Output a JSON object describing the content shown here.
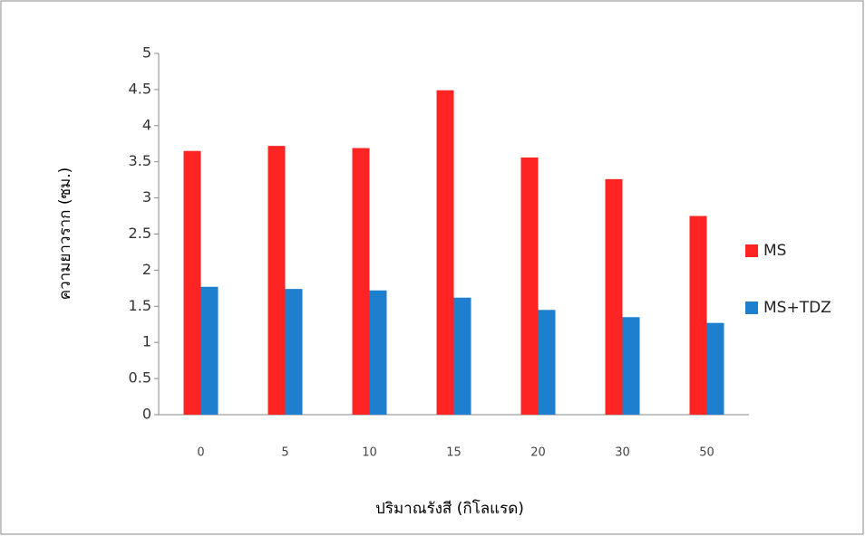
{
  "chart_data": {
    "type": "bar",
    "y_label": "ความยาวราก (ซม.)",
    "x_label": "ปริมาณรังสี (กิโลแรด)",
    "categories": [
      "0",
      "5",
      "10",
      "15",
      "20",
      "30",
      "50"
    ],
    "series": [
      {
        "name": "MS",
        "color": "#ff2424",
        "values": [
          3.65,
          3.72,
          3.69,
          4.49,
          3.56,
          3.26,
          2.75
        ]
      },
      {
        "name": "MS+TDZ",
        "color": "#1f7fcf",
        "values": [
          1.77,
          1.74,
          1.72,
          1.62,
          1.45,
          1.35,
          1.27
        ]
      }
    ],
    "ylim": [
      0,
      5
    ],
    "yticks": [
      0,
      0.5,
      1,
      1.5,
      2,
      2.5,
      3,
      3.5,
      4,
      4.5,
      5
    ],
    "grid": false,
    "legend": "right"
  }
}
